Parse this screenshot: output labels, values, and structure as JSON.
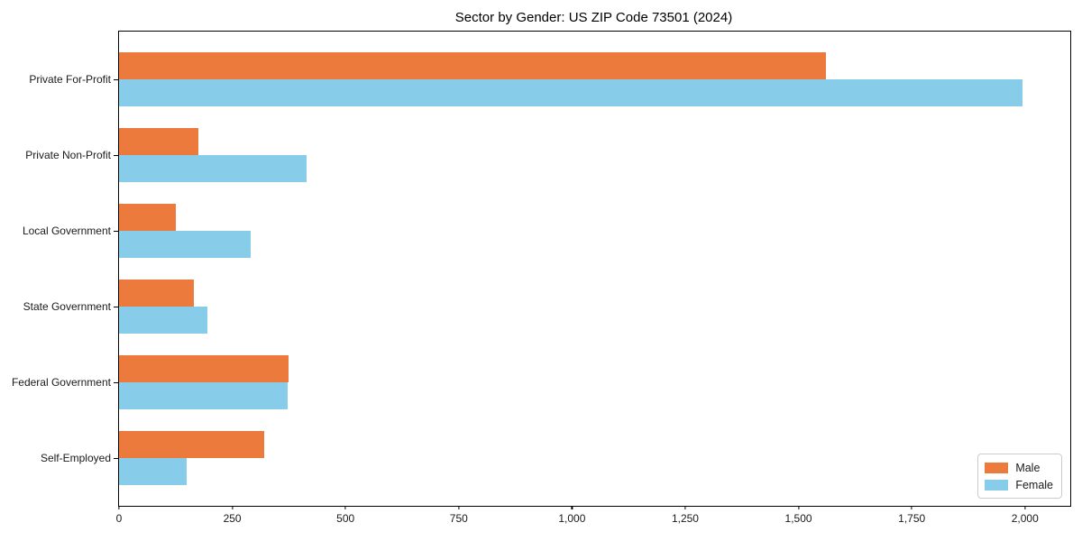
{
  "title": "Sector by Gender: US ZIP Code 73501 (2024)",
  "colors": {
    "male": "#EB7A3C",
    "female": "#87CDE9",
    "spine": "#000000",
    "text": "#1a1a1a",
    "legend_border": "#cccccc"
  },
  "legend": {
    "items": [
      {
        "label": "Male",
        "color_key": "male"
      },
      {
        "label": "Female",
        "color_key": "female"
      }
    ],
    "position": "lower right"
  },
  "chart_data": {
    "type": "bar",
    "orientation": "horizontal",
    "title": "Sector by Gender: US ZIP Code 73501 (2024)",
    "categories": [
      "Private For-Profit",
      "Private Non-Profit",
      "Local Government",
      "State Government",
      "Federal Government",
      "Self-Employed"
    ],
    "series": [
      {
        "name": "Male",
        "color": "#EB7A3C",
        "values": [
          1560,
          175,
          125,
          165,
          375,
          320
        ]
      },
      {
        "name": "Female",
        "color": "#87CDE9",
        "values": [
          1995,
          415,
          290,
          195,
          372,
          150
        ]
      }
    ],
    "xlabel": "",
    "ylabel": "",
    "xlim": [
      0,
      2100
    ],
    "x_ticks": [
      0,
      250,
      500,
      750,
      1000,
      1250,
      1500,
      1750,
      2000
    ],
    "x_tick_labels": [
      "0",
      "250",
      "500",
      "750",
      "1,000",
      "1,250",
      "1,500",
      "1,750",
      "2,000"
    ],
    "grid": false,
    "legend_position": "lower right"
  }
}
